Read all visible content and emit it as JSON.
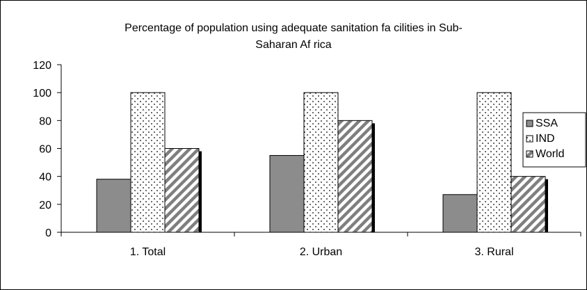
{
  "chart_data": {
    "type": "bar",
    "title": "Percentage of population using adequate sanitation facilities in Sub-Saharan Africa",
    "title_lines": [
      "Percentage of population using adequate sanitation fa cilities in Sub-",
      "Saharan Af rica"
    ],
    "categories": [
      "1. Total",
      "2. Urban",
      "3. Rural"
    ],
    "series": [
      {
        "name": "SSA",
        "values": [
          38,
          55,
          27
        ],
        "color": "#8c8c8c",
        "pattern": "solid-gray"
      },
      {
        "name": "IND",
        "values": [
          100,
          100,
          100
        ],
        "color": "#ffffff",
        "pattern": "dots"
      },
      {
        "name": "World",
        "values": [
          60,
          80,
          40
        ],
        "color": "#ffffff",
        "pattern": "diagonal-hatch"
      }
    ],
    "ylim": [
      0,
      120
    ],
    "yticks": [
      0,
      20,
      40,
      60,
      80,
      100,
      120
    ],
    "xlabel": "",
    "ylabel": "",
    "grid": false,
    "legend_position": "right"
  }
}
